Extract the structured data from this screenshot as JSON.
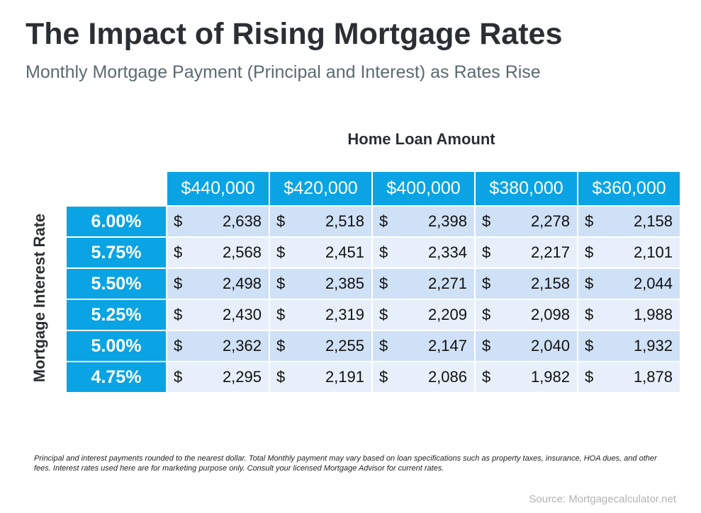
{
  "title": "The Impact of Rising Mortgage Rates",
  "subtitle": "Monthly Mortgage Payment (Principal and Interest) as Rates Rise",
  "footnote": "Principal and interest payments rounded to the nearest dollar. Total Monthly payment may vary based on loan specifications such as property taxes, insurance, HOA dues, and other fees. Interest rates used here are for marketing purpose only. Consult your licensed Mortgage Advisor for current rates.",
  "source": "Source: Mortgagecalculator.net",
  "colors": {
    "header": "#0aa4e4",
    "row_dark": "#cfe1f6",
    "row_light": "#e7f0fa"
  },
  "chart_data": {
    "type": "table",
    "column_title": "Home Loan Amount",
    "row_title": "Mortgage Interest Rate",
    "columns": [
      "$440,000",
      "$420,000",
      "$400,000",
      "$380,000",
      "$360,000"
    ],
    "currency_symbol": "$",
    "rows": [
      {
        "rate": "6.00%",
        "values": [
          "2,638",
          "2,518",
          "2,398",
          "2,278",
          "2,158"
        ]
      },
      {
        "rate": "5.75%",
        "values": [
          "2,568",
          "2,451",
          "2,334",
          "2,217",
          "2,101"
        ]
      },
      {
        "rate": "5.50%",
        "values": [
          "2,498",
          "2,385",
          "2,271",
          "2,158",
          "2,044"
        ]
      },
      {
        "rate": "5.25%",
        "values": [
          "2,430",
          "2,319",
          "2,209",
          "2,098",
          "1,988"
        ]
      },
      {
        "rate": "5.00%",
        "values": [
          "2,362",
          "2,255",
          "2,147",
          "2,040",
          "1,932"
        ]
      },
      {
        "rate": "4.75%",
        "values": [
          "2,295",
          "2,191",
          "2,086",
          "1,982",
          "1,878"
        ]
      }
    ]
  }
}
